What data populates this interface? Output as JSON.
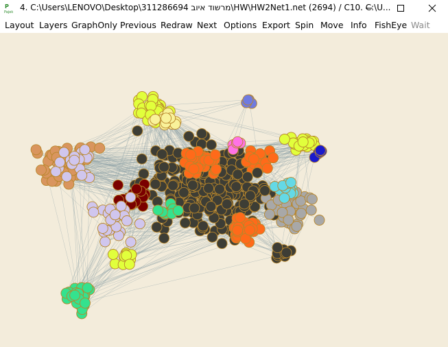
{
  "window": {
    "title": "4. C:\\Users\\LENOVO\\Desktop\\311286694 מרשוד איוב\\HW\\HW2Net1.net (2694) / C10. C:\\U...",
    "icon": "pajek-app-icon",
    "controls": [
      "minimize-icon",
      "maximize-icon",
      "close-icon"
    ]
  },
  "menu": {
    "layout": "Layout",
    "layers": "Layers",
    "graphonly": "GraphOnly",
    "previous": "Previous",
    "redraw": "Redraw",
    "next": "Next",
    "options": "Options",
    "export": "Export",
    "spin": "Spin",
    "move": "Move",
    "info": "Info",
    "fisheye": "FishEye",
    "wait": "Wait"
  },
  "canvas": {
    "background": "#f3ecdb",
    "edge_color": "#8ea3a8",
    "node_outline": "#b8862b",
    "cluster_colors": [
      "#3d3d35",
      "#ff6a1a",
      "#e1ff3c",
      "#d0c6ee",
      "#d9955e",
      "#34e28e",
      "#64d9e6",
      "#ff72e6",
      "#7a0000",
      "#1a1acc",
      "#6f7be0",
      "#a8a8a8",
      "#f9f29a",
      "#c8f09b",
      "#f0f08a"
    ]
  }
}
